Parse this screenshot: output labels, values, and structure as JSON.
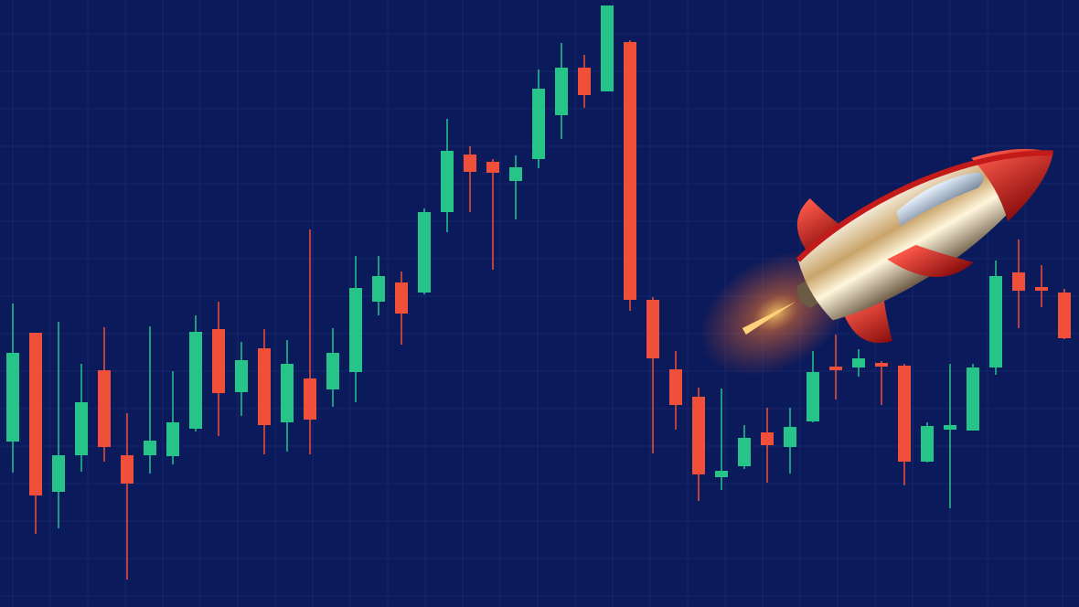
{
  "chart_data": {
    "type": "candlestick",
    "open": [
      181,
      300,
      126,
      166,
      259,
      166,
      166,
      165,
      195,
      304,
      235,
      283,
      202,
      250,
      238,
      257,
      334,
      355,
      344,
      432,
      495,
      487,
      466,
      490,
      538,
      590,
      564,
      618,
      336,
      260,
      230,
      142,
      154,
      191,
      175,
      203,
      263,
      262,
      267,
      264,
      159,
      194,
      193,
      262,
      366,
      350,
      344
    ],
    "high": [
      332,
      300,
      312,
      266,
      306,
      212,
      307,
      258,
      319,
      334,
      290,
      304,
      292,
      413,
      305,
      384,
      384,
      367,
      436,
      534,
      504,
      490,
      494,
      588,
      617,
      604,
      658,
      620,
      339,
      280,
      240,
      239,
      199,
      218,
      218,
      280,
      298,
      282,
      269,
      266,
      202,
      266,
      266,
      379,
      402,
      374,
      348
    ],
    "low": [
      147,
      80,
      86,
      148,
      159,
      30,
      146,
      156,
      192,
      187,
      209,
      167,
      170,
      167,
      219,
      224,
      319,
      287,
      342,
      410,
      432,
      369,
      424,
      480,
      512,
      546,
      564,
      324,
      168,
      194,
      116,
      128,
      151,
      136,
      146,
      202,
      227,
      252,
      221,
      133,
      158,
      108,
      193,
      254,
      305,
      328,
      293
    ],
    "close": [
      278,
      122,
      166,
      224,
      175,
      135,
      182,
      202,
      301,
      234,
      270,
      199,
      266,
      205,
      278,
      349,
      362,
      321,
      432,
      499,
      476,
      475,
      481,
      567,
      590,
      560,
      658,
      336,
      272,
      221,
      145,
      149,
      185,
      177,
      197,
      257,
      259,
      272,
      263,
      159,
      198,
      199,
      262,
      362,
      346,
      346,
      294
    ],
    "ylim": [
      0,
      664
    ],
    "up_color": "#27c48a",
    "down_color": "#f0503a",
    "grid": true
  }
}
